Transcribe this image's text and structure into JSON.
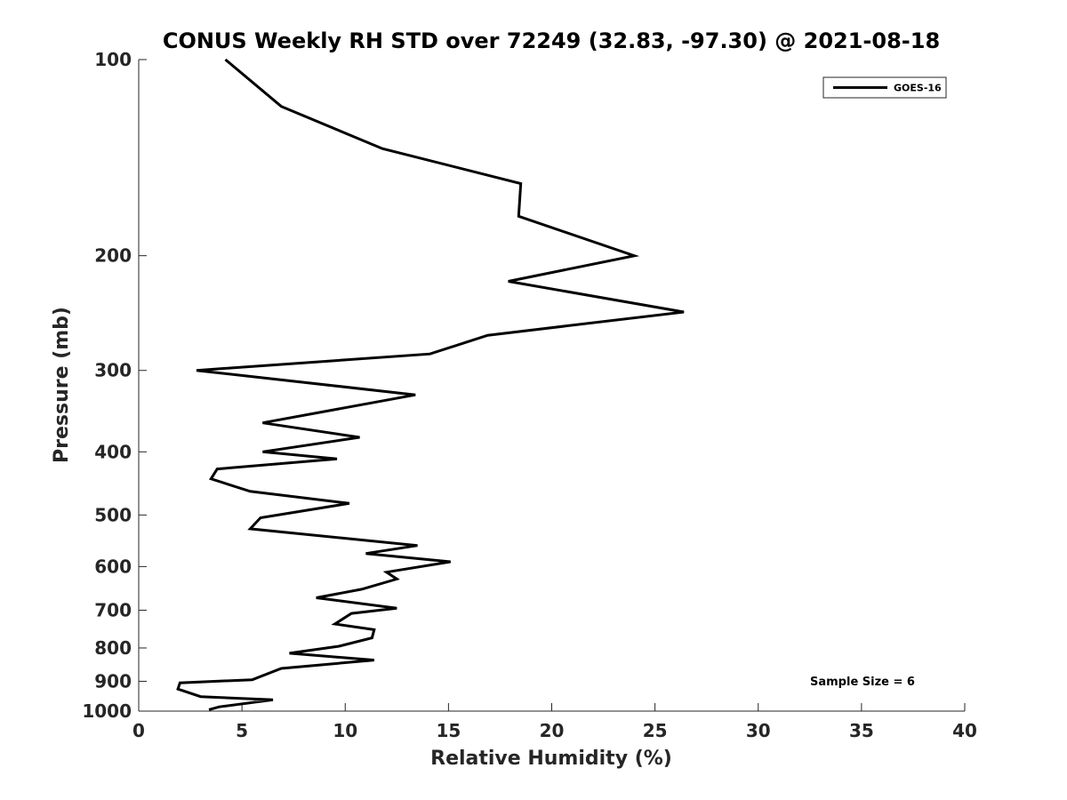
{
  "chart_data": {
    "type": "line",
    "title": "CONUS Weekly RH STD over 72249 (32.83, -97.30) @ 2021-08-18",
    "xlabel": "Relative Humidity (%)",
    "ylabel": "Pressure (mb)",
    "xlim": [
      0,
      40
    ],
    "ylim": [
      100,
      1000
    ],
    "y_scale": "log",
    "y_reversed": true,
    "x_ticks": [
      "0",
      "5",
      "10",
      "15",
      "20",
      "25",
      "30",
      "35",
      "40"
    ],
    "y_ticks": [
      "100",
      "200",
      "300",
      "400",
      "500",
      "600",
      "700",
      "800",
      "900",
      "1000"
    ],
    "grid": false,
    "legend": {
      "placement": "top-right",
      "entries": [
        "GOES-16"
      ]
    },
    "annotation": "Sample Size = 6",
    "series": [
      {
        "name": "GOES-16",
        "color": "#000000",
        "x": [
          4.2,
          6.9,
          11.8,
          18.5,
          18.4,
          24.0,
          17.9,
          26.4,
          16.9,
          14.1,
          2.8,
          13.4,
          6.0,
          10.7,
          6.0,
          9.6,
          3.8,
          3.5,
          5.4,
          10.2,
          5.9,
          5.4,
          13.5,
          11.0,
          15.1,
          12.0,
          12.5,
          10.8,
          8.6,
          12.5,
          10.3,
          9.5,
          11.4,
          11.3,
          9.7,
          7.3,
          11.4,
          6.9,
          5.5,
          2.0,
          1.9,
          3.0,
          6.5,
          3.9,
          3.4
        ],
        "y": [
          100,
          118,
          137,
          155,
          174,
          200,
          219,
          244,
          265,
          283,
          300,
          327,
          361,
          380,
          400,
          410,
          425,
          440,
          460,
          480,
          505,
          525,
          557,
          573,
          590,
          612,
          627,
          650,
          670,
          695,
          708,
          735,
          750,
          772,
          795,
          815,
          835,
          860,
          895,
          905,
          925,
          950,
          961,
          985,
          995
        ]
      }
    ]
  }
}
